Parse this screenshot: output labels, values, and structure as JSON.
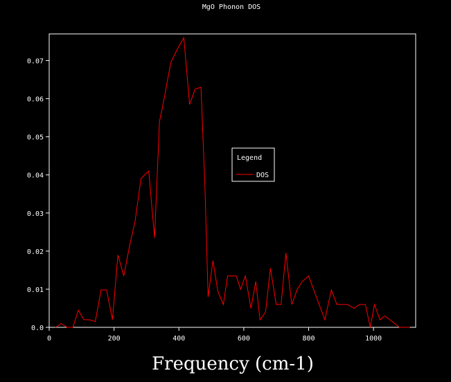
{
  "chart_data": {
    "type": "line",
    "title": "MgO Phonon DOS",
    "xlabel": "Frequency (cm-1)",
    "ylabel": "",
    "xlim": [
      0,
      1130
    ],
    "ylim": [
      0,
      0.077
    ],
    "x_ticks": [
      0,
      200,
      400,
      600,
      800,
      1000
    ],
    "y_ticks": [
      0.0,
      0.01,
      0.02,
      0.03,
      0.04,
      0.05,
      0.06,
      0.07
    ],
    "y_tick_labels": [
      "0.0",
      "0.01",
      "0.02",
      "0.03",
      "0.04",
      "0.05",
      "0.06",
      "0.07"
    ],
    "grid": false,
    "legend": {
      "title": "Legend",
      "position": "center-right",
      "entries": [
        "DOS"
      ]
    },
    "series": [
      {
        "name": "DOS",
        "color": "#ff0000",
        "x": [
          20,
          37,
          55,
          73,
          90,
          107,
          125,
          142,
          160,
          177,
          195,
          212,
          230,
          247,
          265,
          283,
          300,
          307,
          325,
          340,
          350,
          375,
          395,
          415,
          433,
          450,
          468,
          480,
          490,
          505,
          520,
          537,
          550,
          560,
          577,
          590,
          605,
          622,
          637,
          650,
          667,
          682,
          700,
          715,
          730,
          748,
          765,
          780,
          800,
          830,
          850,
          870,
          887,
          905,
          920,
          940,
          957,
          975,
          990,
          1003,
          1020,
          1035,
          1050,
          1065,
          1080,
          1097,
          1112
        ],
        "y": [
          0.0,
          0.001,
          0.0,
          0.0,
          0.0045,
          0.002,
          0.002,
          0.0015,
          0.0098,
          0.0098,
          0.002,
          0.019,
          0.0135,
          0.021,
          0.028,
          0.039,
          0.0405,
          0.041,
          0.0235,
          0.054,
          0.058,
          0.0695,
          0.073,
          0.076,
          0.0585,
          0.0625,
          0.063,
          0.0375,
          0.008,
          0.0175,
          0.0095,
          0.006,
          0.0135,
          0.0135,
          0.0135,
          0.01,
          0.0135,
          0.005,
          0.012,
          0.002,
          0.004,
          0.0155,
          0.006,
          0.006,
          0.0195,
          0.006,
          0.01,
          0.012,
          0.0135,
          0.0065,
          0.002,
          0.0098,
          0.006,
          0.006,
          0.006,
          0.005,
          0.006,
          0.006,
          0.0,
          0.006,
          0.002,
          0.003,
          0.002,
          0.001,
          0.0,
          0.0,
          0.0
        ]
      }
    ]
  }
}
